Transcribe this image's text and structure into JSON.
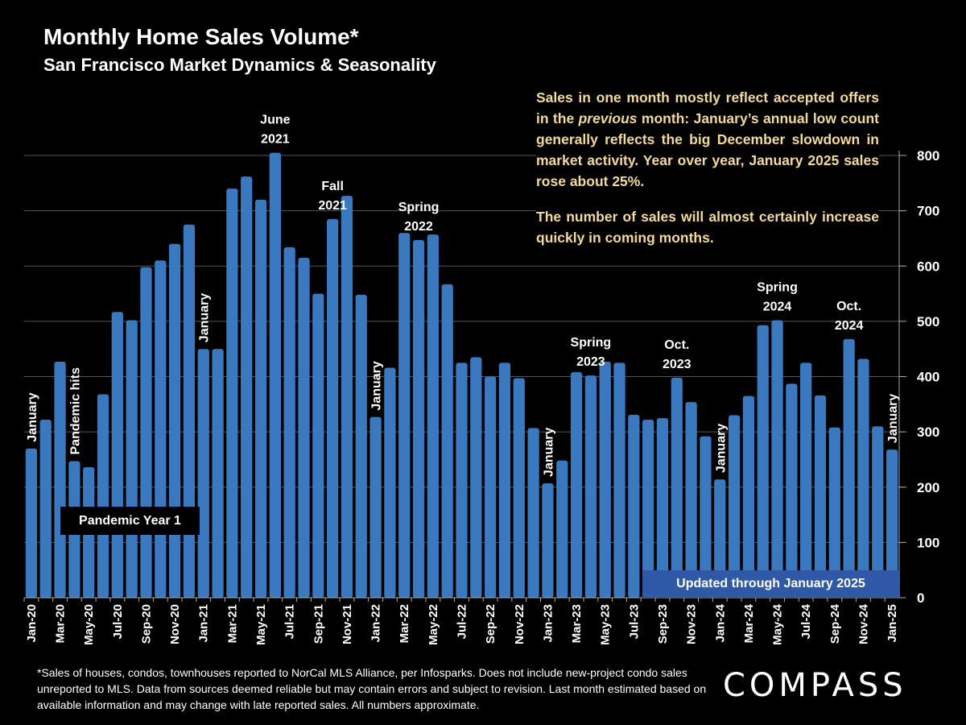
{
  "header": {
    "title": "Monthly Home Sales Volume*",
    "subtitle": "San Francisco Market Dynamics & Seasonality"
  },
  "note": {
    "paragraph1_before": "Sales in one month mostly reflect accepted offers in the ",
    "paragraph1_italic": "previous",
    "paragraph1_after": " month:  January’s annual low count generally reflects the big December slowdown in market activity. Year over year, January 2025 sales rose about 25%.",
    "paragraph2": "The number of sales will almost certainly increase quickly in coming months."
  },
  "boxes": {
    "pandemic_year": "Pandemic Year 1",
    "updated": "Updated through January 2025"
  },
  "footnote": "*Sales of houses, condos, townhouses reported to NorCal MLS Alliance, per Infosparks. Does not include new-project condo sales unreported to MLS. Data from sources deemed reliable but may contain errors and subject to revision. Last month estimated based on available information and may change with late reported sales. All numbers approximate.",
  "logo": "COMPASS",
  "colors": {
    "bar": "#3a78c0",
    "note_text": "#f3d99a",
    "updated_box": "#2f58a6",
    "grid": "#555555"
  },
  "chart_data": {
    "type": "bar",
    "title": "Monthly Home Sales Volume*",
    "subtitle": "San Francisco Market Dynamics & Seasonality",
    "xlabel": "",
    "ylabel": "",
    "ylim": [
      0,
      800
    ],
    "yticks": [
      0,
      100,
      200,
      300,
      400,
      500,
      600,
      700,
      800
    ],
    "y_axis_side": "right",
    "grid": true,
    "categories": [
      "Jan-20",
      "Feb-20",
      "Mar-20",
      "Apr-20",
      "May-20",
      "Jun-20",
      "Jul-20",
      "Aug-20",
      "Sep-20",
      "Oct-20",
      "Nov-20",
      "Dec-20",
      "Jan-21",
      "Feb-21",
      "Mar-21",
      "Apr-21",
      "May-21",
      "Jun-21",
      "Jul-21",
      "Aug-21",
      "Sep-21",
      "Oct-21",
      "Nov-21",
      "Dec-21",
      "Jan-22",
      "Feb-22",
      "Mar-22",
      "Apr-22",
      "May-22",
      "Jun-22",
      "Jul-22",
      "Aug-22",
      "Sep-22",
      "Oct-22",
      "Nov-22",
      "Dec-22",
      "Jan-23",
      "Feb-23",
      "Mar-23",
      "Apr-23",
      "May-23",
      "Jun-23",
      "Jul-23",
      "Aug-23",
      "Sep-23",
      "Oct-23",
      "Nov-23",
      "Dec-23",
      "Jan-24",
      "Feb-24",
      "Mar-24",
      "Apr-24",
      "May-24",
      "Jun-24",
      "Jul-24",
      "Aug-24",
      "Sep-24",
      "Oct-24",
      "Nov-24",
      "Dec-24",
      "Jan-25"
    ],
    "xtick_labels": [
      "Jan-20",
      "Mar-20",
      "May-20",
      "Jul-20",
      "Sep-20",
      "Nov-20",
      "Jan-21",
      "Mar-21",
      "May-21",
      "Jul-21",
      "Sep-21",
      "Nov-21",
      "Jan-22",
      "Mar-22",
      "May-22",
      "Jul-22",
      "Sep-22",
      "Nov-22",
      "Jan-23",
      "Mar-23",
      "May-23",
      "Jul-23",
      "Sep-23",
      "Nov-23",
      "Jan-24",
      "Mar-24",
      "May-24",
      "Jul-24",
      "Sep-24",
      "Nov-24",
      "Jan-25"
    ],
    "values": [
      270,
      322,
      427,
      247,
      236,
      368,
      517,
      502,
      598,
      610,
      640,
      675,
      450,
      450,
      740,
      762,
      720,
      805,
      634,
      615,
      550,
      685,
      727,
      548,
      327,
      416,
      660,
      647,
      657,
      567,
      425,
      435,
      400,
      425,
      397,
      307,
      207,
      248,
      408,
      402,
      427,
      425,
      331,
      322,
      325,
      398,
      354,
      292,
      214,
      330,
      365,
      493,
      502,
      387,
      425,
      366,
      308,
      468,
      432,
      310,
      268
    ],
    "annotations": [
      {
        "text": "January",
        "category": "Jan-20",
        "orientation": "vertical"
      },
      {
        "text": "Pandemic hits",
        "category": "Apr-20",
        "orientation": "vertical"
      },
      {
        "text": "January",
        "category": "Jan-21",
        "orientation": "vertical"
      },
      {
        "text": "June\n2021",
        "category": "Jun-21",
        "orientation": "horizontal"
      },
      {
        "text": "Fall\n2021",
        "category": "Oct-21",
        "orientation": "horizontal"
      },
      {
        "text": "January",
        "category": "Jan-22",
        "orientation": "vertical"
      },
      {
        "text": "Spring\n2022",
        "category": "Apr-22",
        "orientation": "horizontal"
      },
      {
        "text": "January",
        "category": "Jan-23",
        "orientation": "vertical"
      },
      {
        "text": "Spring\n2023",
        "category": "Apr-23",
        "orientation": "horizontal"
      },
      {
        "text": "Oct.\n2023",
        "category": "Oct-23",
        "orientation": "horizontal"
      },
      {
        "text": "January",
        "category": "Jan-24",
        "orientation": "vertical"
      },
      {
        "text": "Spring\n2024",
        "category": "May-24",
        "orientation": "horizontal"
      },
      {
        "text": "Oct.\n2024",
        "category": "Oct-24",
        "orientation": "horizontal"
      },
      {
        "text": "January",
        "category": "Jan-25",
        "orientation": "vertical"
      }
    ]
  }
}
